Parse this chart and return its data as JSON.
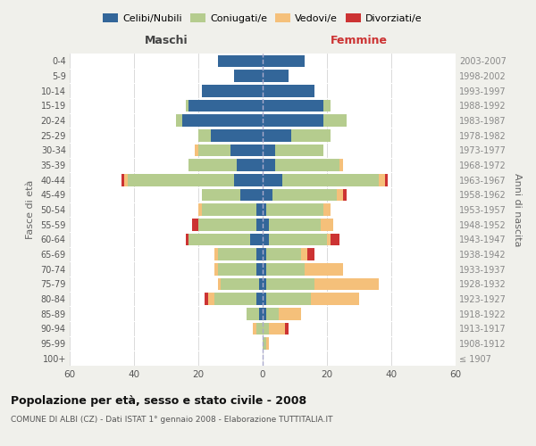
{
  "age_groups": [
    "100+",
    "95-99",
    "90-94",
    "85-89",
    "80-84",
    "75-79",
    "70-74",
    "65-69",
    "60-64",
    "55-59",
    "50-54",
    "45-49",
    "40-44",
    "35-39",
    "30-34",
    "25-29",
    "20-24",
    "15-19",
    "10-14",
    "5-9",
    "0-4"
  ],
  "birth_years": [
    "≤ 1907",
    "1908-1912",
    "1913-1917",
    "1918-1922",
    "1923-1927",
    "1928-1932",
    "1933-1937",
    "1938-1942",
    "1943-1947",
    "1948-1952",
    "1953-1957",
    "1958-1962",
    "1963-1967",
    "1968-1972",
    "1973-1977",
    "1978-1982",
    "1983-1987",
    "1988-1992",
    "1993-1997",
    "1998-2002",
    "2003-2007"
  ],
  "males": {
    "celibi": [
      0,
      0,
      0,
      1,
      2,
      1,
      2,
      2,
      4,
      2,
      2,
      7,
      9,
      8,
      10,
      16,
      25,
      23,
      19,
      9,
      14
    ],
    "coniugati": [
      0,
      0,
      2,
      4,
      13,
      12,
      12,
      12,
      19,
      18,
      17,
      12,
      33,
      15,
      10,
      4,
      2,
      1,
      0,
      0,
      0
    ],
    "vedovi": [
      0,
      0,
      1,
      0,
      2,
      1,
      1,
      1,
      0,
      0,
      1,
      0,
      1,
      0,
      1,
      0,
      0,
      0,
      0,
      0,
      0
    ],
    "divorziati": [
      0,
      0,
      0,
      0,
      1,
      0,
      0,
      0,
      1,
      2,
      0,
      0,
      1,
      0,
      0,
      0,
      0,
      0,
      0,
      0,
      0
    ]
  },
  "females": {
    "nubili": [
      0,
      0,
      0,
      1,
      1,
      1,
      1,
      1,
      2,
      2,
      1,
      3,
      6,
      4,
      4,
      9,
      19,
      19,
      16,
      8,
      13
    ],
    "coniugate": [
      0,
      1,
      2,
      4,
      14,
      15,
      12,
      11,
      18,
      16,
      18,
      20,
      30,
      20,
      15,
      12,
      7,
      2,
      0,
      0,
      0
    ],
    "vedove": [
      0,
      1,
      5,
      7,
      15,
      20,
      12,
      2,
      1,
      4,
      2,
      2,
      2,
      1,
      0,
      0,
      0,
      0,
      0,
      0,
      0
    ],
    "divorziate": [
      0,
      0,
      1,
      0,
      0,
      0,
      0,
      2,
      3,
      0,
      0,
      1,
      1,
      0,
      0,
      0,
      0,
      0,
      0,
      0,
      0
    ]
  },
  "colors": {
    "celibi": "#336699",
    "coniugati": "#b5cc8e",
    "vedovi": "#f5c07a",
    "divorziati": "#cc3333"
  },
  "xlim": 60,
  "title": "Popolazione per età, sesso e stato civile - 2008",
  "subtitle": "COMUNE DI ALBI (CZ) - Dati ISTAT 1° gennaio 2008 - Elaborazione TUTTITALIA.IT",
  "xlabel_left": "Maschi",
  "xlabel_right": "Femmine",
  "ylabel_left": "Fasce di età",
  "ylabel_right": "Anni di nascita",
  "background_color": "#f0f0eb",
  "plot_background": "#ffffff",
  "legend_labels": [
    "Celibi/Nubili",
    "Coniugati/e",
    "Vedovi/e",
    "Divorziati/e"
  ]
}
